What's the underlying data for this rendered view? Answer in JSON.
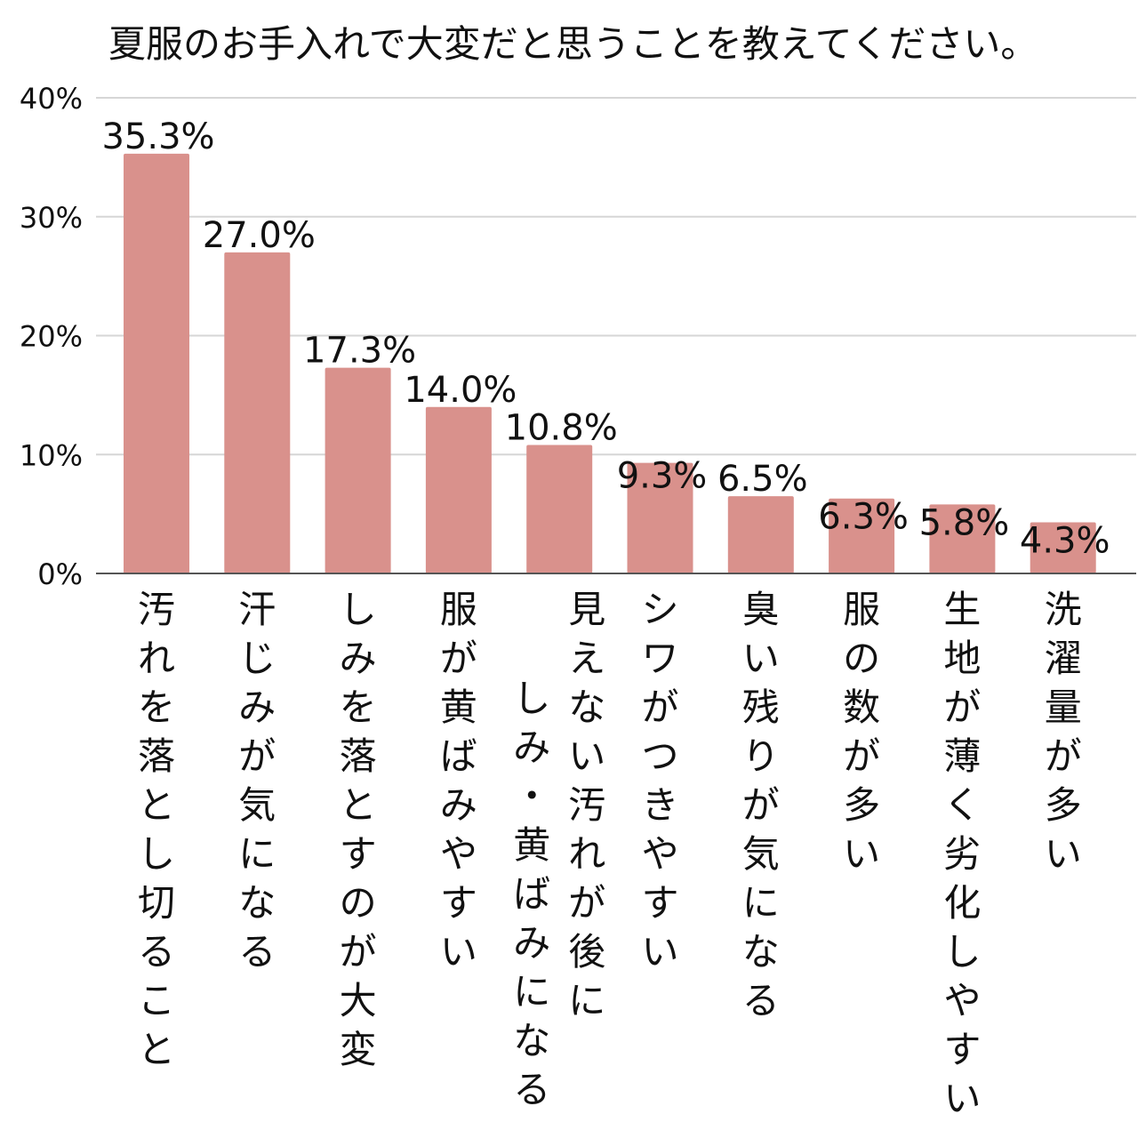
{
  "chart_data": {
    "type": "bar",
    "title": "夏服のお手入れで大変だと思うことを教えてください。",
    "ylim": [
      0,
      40
    ],
    "yticks": [
      "0%",
      "10%",
      "20%",
      "30%",
      "40%"
    ],
    "ytick_values": [
      0,
      10,
      20,
      30,
      40
    ],
    "grid": true,
    "bar_color": "#d9918c",
    "categories": [
      [
        "汚れを落とし切ること"
      ],
      [
        "汗じみが気になる"
      ],
      [
        "しみを落とすのが大変"
      ],
      [
        "服が黄ばみやすい"
      ],
      [
        "見えない汚れが後に",
        "しみ・黄ばみになる"
      ],
      [
        "シワがつきやすい"
      ],
      [
        "臭い残りが気になる"
      ],
      [
        "服の数が多い"
      ],
      [
        "生地が薄く劣化しやすい"
      ],
      [
        "洗濯量が多い"
      ]
    ],
    "values": [
      35.3,
      27.0,
      17.3,
      14.0,
      10.8,
      9.3,
      6.5,
      6.3,
      5.8,
      4.3
    ],
    "value_labels": [
      "35.3%",
      "27.0%",
      "17.3%",
      "14.0%",
      "10.8%",
      "9.3%",
      "6.5%",
      "6.3%",
      "5.8%",
      "4.3%"
    ]
  }
}
